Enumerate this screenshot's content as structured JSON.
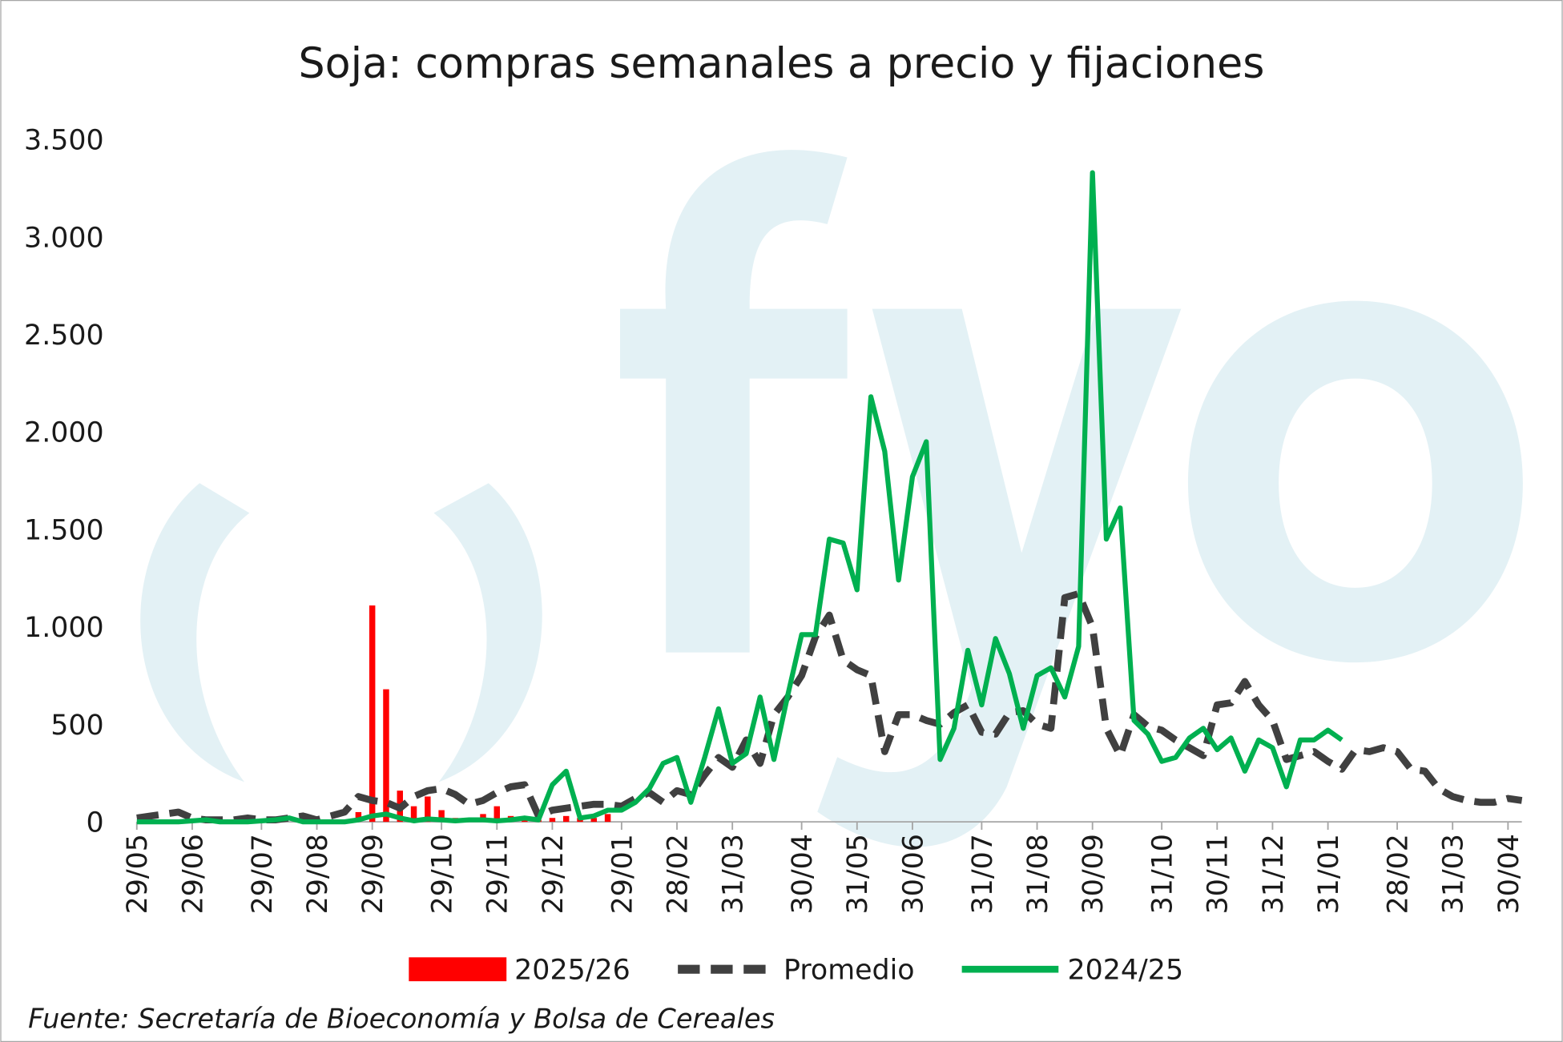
{
  "chart_data": {
    "type": "line",
    "title": "Soja: compras semanales a precio y fijaciones",
    "source": "Fuente: Secretaría de Bioeconomía y Bolsa de Cereales",
    "categories": [
      "29/05",
      null,
      null,
      null,
      "29/06",
      null,
      null,
      null,
      null,
      "29/07",
      null,
      null,
      null,
      "29/08",
      null,
      null,
      null,
      "29/09",
      null,
      null,
      null,
      null,
      "29/10",
      null,
      null,
      null,
      "29/11",
      null,
      null,
      null,
      "29/12",
      null,
      null,
      null,
      null,
      "29/01",
      null,
      null,
      null,
      "28/02",
      null,
      null,
      null,
      "31/03",
      null,
      null,
      null,
      null,
      "30/04",
      null,
      null,
      null,
      "31/05",
      null,
      null,
      null,
      "30/06",
      null,
      null,
      null,
      null,
      "31/07",
      null,
      null,
      null,
      "31/08",
      null,
      null,
      null,
      "30/09",
      null,
      null,
      null,
      null,
      "31/10",
      null,
      null,
      null,
      "30/11",
      null,
      null,
      null,
      "31/12",
      null,
      null,
      null,
      "31/01",
      null,
      null,
      null,
      null,
      "28/02",
      null,
      null,
      null,
      "31/03",
      null,
      null,
      null,
      "30/04",
      null
    ],
    "ylim": [
      0,
      3500
    ],
    "yticks": [
      0,
      500,
      {
        "value": 1000,
        "label": "1.000"
      },
      {
        "value": 1500,
        "label": "1.500"
      },
      {
        "value": 2000,
        "label": "2.000"
      },
      {
        "value": 2500,
        "label": "2.500"
      },
      {
        "value": 3000,
        "label": "3.000"
      },
      {
        "value": 3500,
        "label": "3.500"
      }
    ],
    "grid": false,
    "legend": "bottom",
    "series": [
      {
        "name": "2025/26",
        "type": "bar",
        "color": "#ff0000",
        "values": [
          null,
          null,
          null,
          null,
          null,
          null,
          null,
          null,
          null,
          null,
          null,
          null,
          null,
          5,
          10,
          5,
          50,
          1110,
          680,
          160,
          80,
          130,
          60,
          20,
          10,
          40,
          80,
          30,
          10,
          10,
          20,
          30,
          20,
          20,
          40,
          null,
          null,
          null,
          null,
          null,
          null,
          null,
          null,
          null,
          null,
          null,
          null,
          null,
          null,
          null,
          null,
          null,
          null,
          null,
          null,
          null,
          null,
          null,
          null,
          null,
          null,
          null,
          null,
          null,
          null,
          null,
          null,
          null,
          null,
          null,
          null,
          null,
          null,
          null,
          null,
          null,
          null,
          null,
          null,
          null,
          null,
          null,
          null,
          null,
          null,
          null,
          null,
          null,
          null,
          null,
          null,
          null,
          null,
          null,
          null,
          null,
          null,
          null,
          null,
          null,
          null
        ]
      },
      {
        "name": "Promedio",
        "type": "line",
        "dash": true,
        "color": "#404040",
        "values": [
          20,
          30,
          40,
          50,
          20,
          10,
          10,
          10,
          20,
          10,
          10,
          20,
          30,
          10,
          30,
          50,
          130,
          110,
          100,
          70,
          130,
          160,
          170,
          140,
          90,
          110,
          150,
          180,
          190,
          30,
          60,
          70,
          80,
          90,
          90,
          80,
          120,
          150,
          100,
          160,
          140,
          240,
          330,
          280,
          420,
          300,
          550,
          640,
          750,
          950,
          1060,
          830,
          780,
          750,
          360,
          550,
          550,
          520,
          500,
          560,
          600,
          460,
          450,
          560,
          570,
          500,
          480,
          1150,
          1170,
          1000,
          480,
          340,
          550,
          490,
          470,
          420,
          380,
          340,
          600,
          610,
          720,
          600,
          520,
          320,
          340,
          360,
          310,
          270,
          370,
          360,
          380,
          360,
          270,
          260,
          170,
          130,
          110,
          100,
          100,
          120,
          110
        ]
      },
      {
        "name": "2024/25",
        "type": "line",
        "dash": false,
        "color": "#00b050",
        "values": [
          0,
          0,
          0,
          0,
          5,
          10,
          0,
          0,
          0,
          5,
          10,
          20,
          0,
          0,
          0,
          0,
          10,
          30,
          40,
          20,
          5,
          15,
          10,
          5,
          10,
          10,
          5,
          10,
          20,
          10,
          190,
          260,
          20,
          30,
          60,
          60,
          100,
          170,
          300,
          330,
          100,
          330,
          580,
          300,
          350,
          640,
          320,
          650,
          960,
          960,
          1450,
          1430,
          1190,
          2180,
          1900,
          1240,
          1770,
          1950,
          320,
          480,
          880,
          600,
          940,
          760,
          480,
          750,
          790,
          640,
          900,
          3330,
          1450,
          1610,
          520,
          450,
          310,
          330,
          430,
          480,
          370,
          430,
          260,
          420,
          380,
          180,
          420,
          420,
          470,
          420,
          null,
          null,
          null,
          null,
          null,
          null,
          null,
          null,
          null,
          null,
          null,
          null,
          null
        ]
      }
    ]
  }
}
